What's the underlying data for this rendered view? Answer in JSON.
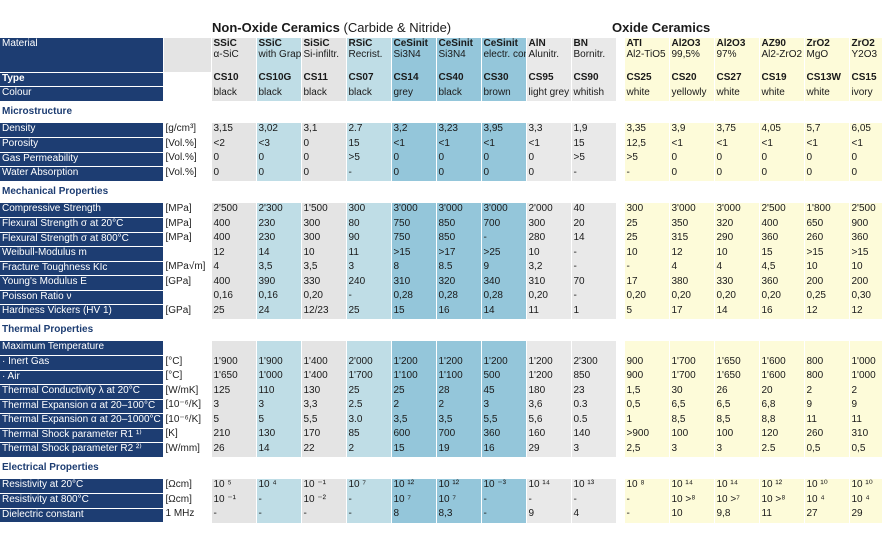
{
  "headings": {
    "non_oxide_bold": "Non-Oxide Ceramics",
    "non_oxide_rest": " (Carbide & Nitride)",
    "oxide": "Oxide Ceramics"
  },
  "columns": [
    {
      "abbr": "SSiC",
      "desc": "α-SiC",
      "group": 0
    },
    {
      "abbr": "SSiC",
      "desc": "with Graphite",
      "group": 1
    },
    {
      "abbr": "SiSiC",
      "desc": "Si-infiltr.",
      "group": 0
    },
    {
      "abbr": "RSiC",
      "desc": "Recrist.",
      "group": 1
    },
    {
      "abbr": "CeSinit",
      "desc": "Si3N4",
      "group": 2
    },
    {
      "abbr": "CeSinit",
      "desc": "Si3N4",
      "group": 2
    },
    {
      "abbr": "CeSinit",
      "desc": "electr. cond.",
      "group": 2
    },
    {
      "abbr": "AlN",
      "desc": "Alunitr.",
      "group": 3
    },
    {
      "abbr": "BN",
      "desc": "Bornitr.",
      "group": 3
    },
    {
      "abbr": "ATI",
      "desc": "Al2-TiO5",
      "group": 4
    },
    {
      "abbr": "Al2O3",
      "desc": "99,5%",
      "group": 4
    },
    {
      "abbr": "Al2O3",
      "desc": "97%",
      "group": 4
    },
    {
      "abbr": "AZ90",
      "desc": "Al2-ZrO2",
      "group": 4
    },
    {
      "abbr": "ZrO2",
      "desc": "MgO",
      "group": 4
    },
    {
      "abbr": "ZrO2",
      "desc": "Y2O3",
      "group": 4
    }
  ],
  "header_label": "Material",
  "rows": [
    {
      "kind": "type",
      "label": "Type",
      "unit": "",
      "values": [
        "CS10",
        "CS10G",
        "CS11",
        "CS07",
        "CS14",
        "CS40",
        "CS30",
        "CS95",
        "CS90",
        "CS25",
        "CS20",
        "CS27",
        "CS19",
        "CS13W",
        "CS15"
      ]
    },
    {
      "kind": "data",
      "label": "Colour",
      "unit": "",
      "values": [
        "black",
        "black",
        "black",
        "black",
        "grey",
        "black",
        "brown",
        "light grey",
        "whitish",
        "white",
        "yellowly",
        "white",
        "white",
        "white",
        "ivory"
      ]
    },
    {
      "kind": "blank"
    },
    {
      "kind": "section",
      "label": "Microstructure"
    },
    {
      "kind": "blank"
    },
    {
      "kind": "data",
      "label": "Density",
      "unit": "[g/cm³]",
      "values": [
        "3,15",
        "3,02",
        "3,1",
        "2.7",
        "3,2",
        "3,23",
        "3,95",
        "3,3",
        "1,9",
        "3,35",
        "3,9",
        "3,75",
        "4,05",
        "5,7",
        "6,05"
      ]
    },
    {
      "kind": "data",
      "label": "Porosity",
      "unit": "[Vol.%]",
      "values": [
        "<2",
        "<3",
        "0",
        "15",
        "<1",
        "<1",
        "<1",
        "<1",
        "15",
        "12,5",
        "<1",
        "<1",
        "<1",
        "<1",
        "<1"
      ]
    },
    {
      "kind": "data",
      "label": "Gas Permeability",
      "unit": "[Vol.%]",
      "values": [
        "0",
        "0",
        "0",
        ">5",
        "0",
        "0",
        "0",
        "0",
        ">5",
        ">5",
        "0",
        "0",
        "0",
        "0",
        "0"
      ]
    },
    {
      "kind": "data",
      "label": "Water Absorption",
      "unit": "[Vol.%]",
      "values": [
        "0",
        "0",
        "0",
        "-",
        "0",
        "0",
        "0",
        "0",
        "-",
        "-",
        "0",
        "0",
        "0",
        "0",
        "0"
      ]
    },
    {
      "kind": "blank"
    },
    {
      "kind": "section",
      "label": "Mechanical Properties"
    },
    {
      "kind": "blank"
    },
    {
      "kind": "data",
      "label": "Compressive Strength",
      "unit": "[MPa]",
      "values": [
        "2'500",
        "2'300",
        "1'500",
        "300",
        "3'000",
        "3'000",
        "3'000",
        "2'000",
        "40",
        "300",
        "3'000",
        "3'000",
        "2'500",
        "1'800",
        "2'500"
      ]
    },
    {
      "kind": "data",
      "label": "Flexural Strength σ at 20°C",
      "unit": "[MPa]",
      "values": [
        "400",
        "230",
        "300",
        "80",
        "750",
        "850",
        "700",
        "300",
        "20",
        "25",
        "350",
        "320",
        "400",
        "650",
        "900"
      ]
    },
    {
      "kind": "data",
      "label": "Flexural Strength σ at 800°C",
      "unit": "[MPa]",
      "values": [
        "400",
        "230",
        "300",
        "90",
        "750",
        "850",
        "-",
        "280",
        "14",
        "25",
        "315",
        "290",
        "360",
        "260",
        "360"
      ]
    },
    {
      "kind": "data",
      "label": "Weibull-Modulus m",
      "unit": "",
      "values": [
        "12",
        "14",
        "10",
        "11",
        ">15",
        ">17",
        ">25",
        "10",
        "-",
        "10",
        "12",
        "10",
        "15",
        ">15",
        ">15"
      ]
    },
    {
      "kind": "data",
      "label": "Fracture Toughness KIc",
      "unit": "[MPa√m]",
      "values": [
        "4",
        "3,5",
        "3,5",
        "3",
        "8",
        "8.5",
        "9",
        "3,2",
        "-",
        "-",
        "4",
        "4",
        "4,5",
        "10",
        "10"
      ]
    },
    {
      "kind": "data",
      "label": "Young's Modulus E",
      "unit": "[GPa]",
      "values": [
        "400",
        "390",
        "330",
        "240",
        "310",
        "320",
        "340",
        "310",
        "70",
        "17",
        "380",
        "330",
        "360",
        "200",
        "200"
      ]
    },
    {
      "kind": "data",
      "label": "Poisson Ratio ν",
      "unit": "",
      "values": [
        "0,16",
        "0,16",
        "0,20",
        "-",
        "0,28",
        "0,28",
        "0,28",
        "0,20",
        "-",
        "0,20",
        "0,20",
        "0,20",
        "0,20",
        "0,25",
        "0,30"
      ]
    },
    {
      "kind": "data",
      "label": "Hardness Vickers (HV 1)",
      "unit": "[GPa]",
      "values": [
        "25",
        "24",
        "12/23",
        "25",
        "15",
        "16",
        "14",
        "11",
        "1",
        "5",
        "17",
        "14",
        "16",
        "12",
        "12"
      ]
    },
    {
      "kind": "blank"
    },
    {
      "kind": "section",
      "label": "Thermal Properties"
    },
    {
      "kind": "blank"
    },
    {
      "kind": "data",
      "label": "Maximum Temperature",
      "unit": "",
      "values": [
        "",
        "",
        "",
        "",
        "",
        "",
        "",
        "",
        "",
        "",
        "",
        "",
        "",
        "",
        ""
      ]
    },
    {
      "kind": "data",
      "label": "· Inert Gas",
      "unit": "[°C]",
      "values": [
        "1'900",
        "1'900",
        "1'400",
        "2'000",
        "1'200",
        "1'200",
        "1'200",
        "1'200",
        "2'300",
        "900",
        "1'700",
        "1'650",
        "1'600",
        "800",
        "1'000"
      ]
    },
    {
      "kind": "data",
      "label": "· Air",
      "unit": "[°C]",
      "values": [
        "1'650",
        "1'000",
        "1'400",
        "1'700",
        "1'100",
        "1'100",
        "500",
        "1'200",
        "850",
        "900",
        "1'700",
        "1'650",
        "1'600",
        "800",
        "1'000"
      ]
    },
    {
      "kind": "data",
      "label": "Thermal Conductivity λ at 20°C",
      "unit": "[W/mK]",
      "values": [
        "125",
        "110",
        "130",
        "25",
        "25",
        "28",
        "45",
        "180",
        "23",
        "1,5",
        "30",
        "26",
        "20",
        "2",
        "2"
      ]
    },
    {
      "kind": "data",
      "label": "Thermal Expansion α at 20–100°C",
      "unit": "[10⁻⁶/K]",
      "values": [
        "3",
        "3",
        "3,3",
        "2.5",
        "2",
        "2",
        "3",
        "3,6",
        "0.3",
        "0,5",
        "6,5",
        "6,5",
        "6,8",
        "9",
        "9"
      ]
    },
    {
      "kind": "data",
      "label": "Thermal Expansion α at 20–1000°C",
      "unit": "[10⁻⁶/K]",
      "values": [
        "5",
        "5",
        "5,5",
        "3.0",
        "3,5",
        "3,5",
        "5,5",
        "5,6",
        "0.5",
        "1",
        "8,5",
        "8,5",
        "8,8",
        "11",
        "11"
      ]
    },
    {
      "kind": "data",
      "label": "Thermal Shock parameter R1 ¹⁾",
      "unit": "[K]",
      "values": [
        "210",
        "130",
        "170",
        "85",
        "600",
        "700",
        "360",
        "160",
        "140",
        ">900",
        "100",
        "100",
        "120",
        "260",
        "310"
      ]
    },
    {
      "kind": "data",
      "label": "Thermal Shock parameter R2 ²⁾",
      "unit": "[W/mm]",
      "values": [
        "26",
        "14",
        "22",
        "2",
        "15",
        "19",
        "16",
        "29",
        "3",
        "2,5",
        "3",
        "3",
        "2.5",
        "0,5",
        "0,5"
      ]
    },
    {
      "kind": "blank"
    },
    {
      "kind": "section",
      "label": "Electrical Properties"
    },
    {
      "kind": "blank"
    },
    {
      "kind": "data",
      "label": "Resistivity at 20°C",
      "unit": "[Ωcm]",
      "values": [
        "10 ⁵",
        "10 ⁴",
        "10 ⁻¹",
        "10 ⁷",
        "10 ¹²",
        "10 ¹²",
        "10 ⁻³",
        "10 ¹⁴",
        "10 ¹³",
        "10 ⁸",
        "10 ¹⁴",
        "10 ¹⁴",
        "10 ¹²",
        "10 ¹⁰",
        "10 ¹⁰"
      ]
    },
    {
      "kind": "data",
      "label": "Resistivity at 800°C",
      "unit": "[Ωcm]",
      "values": [
        "10 ⁻¹",
        "-",
        "10 ⁻²",
        "-",
        "10 ⁷",
        "10 ⁷",
        "-",
        "-",
        "-",
        "-",
        "10 >⁸",
        "10 >⁷",
        "10 >⁸",
        "10 ⁴",
        "10 ⁴"
      ]
    },
    {
      "kind": "data",
      "label": "Dielectric constant",
      "unit": "1 MHz",
      "values": [
        "-",
        "-",
        "-",
        "-",
        "8",
        "8,3",
        "-",
        "9",
        "4",
        "-",
        "10",
        "9,8",
        "11",
        "27",
        "29"
      ]
    }
  ]
}
